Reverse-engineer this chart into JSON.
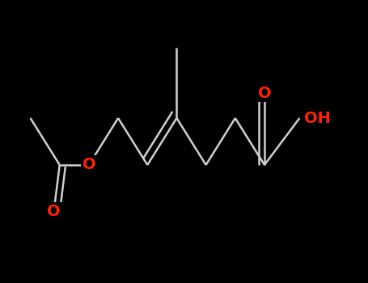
{
  "background_color": "#000000",
  "bond_color": "#d0d0d0",
  "oxygen_color": "#ff2200",
  "line_width": 1.8,
  "font_size": 14,
  "xlim": [
    -1.0,
    11.5
  ],
  "ylim": [
    -2.5,
    3.5
  ],
  "figsize": [
    4.55,
    3.5
  ],
  "dpi": 100
}
